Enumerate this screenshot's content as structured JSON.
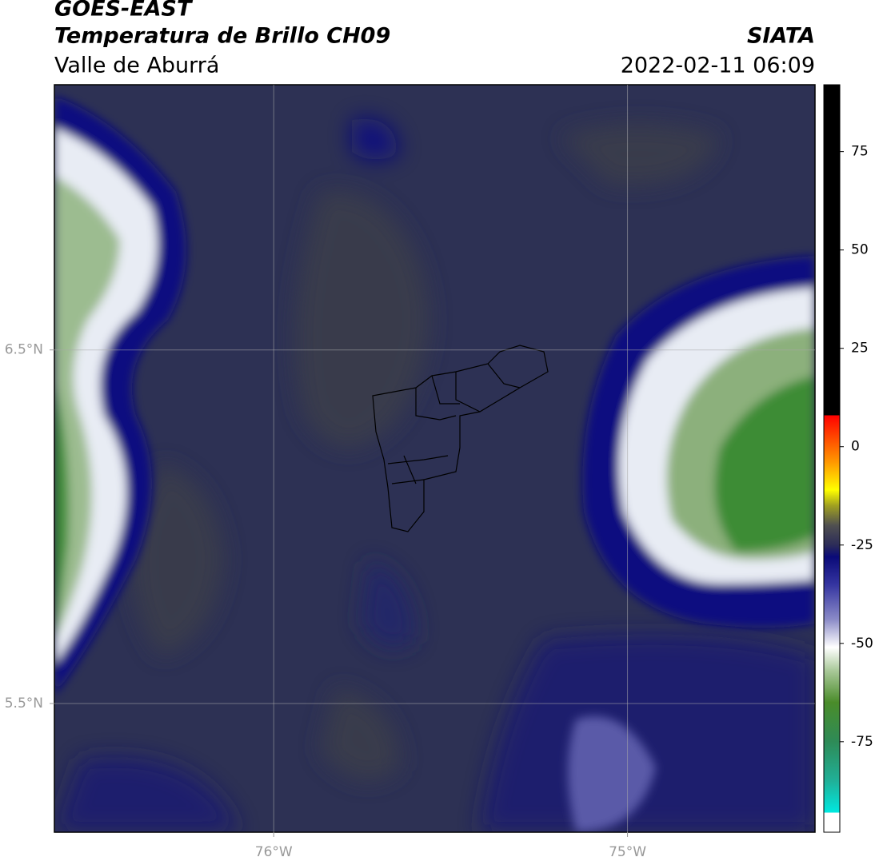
{
  "chart_data": {
    "type": "map",
    "title": "GOES-EAST",
    "subtitle": "Temperatura de Brillo CH09",
    "region": "Valle de Aburrá",
    "source": "SIATA",
    "datetime": "2022-02-11 06:09",
    "xlim": [
      -76.62,
      -74.47
    ],
    "ylim": [
      5.136,
      7.25
    ],
    "xticks": [
      {
        "value": -76,
        "label": "76°W"
      },
      {
        "value": -75,
        "label": "75°W"
      }
    ],
    "yticks": [
      {
        "value": 6.5,
        "label": "6.5°N"
      },
      {
        "value": 5.5,
        "label": "5.5°N"
      }
    ],
    "grid": true,
    "colorbar": {
      "lim": [
        -98,
        92
      ],
      "ticks": [
        75,
        50,
        25,
        0,
        -25,
        -50,
        -75
      ],
      "colors": [
        {
          "value": -98,
          "color": "#ffffff"
        },
        {
          "value": -93,
          "color": "#ffffff"
        },
        {
          "value": -93,
          "color": "#00e8e0"
        },
        {
          "value": -85,
          "color": "#20b098"
        },
        {
          "value": -75,
          "color": "#2e8b57"
        },
        {
          "value": -65,
          "color": "#4a8c2a"
        },
        {
          "value": -57,
          "color": "#a8c898"
        },
        {
          "value": -51,
          "color": "#ffffff"
        },
        {
          "value": -44,
          "color": "#8c8cc8"
        },
        {
          "value": -35,
          "color": "#3434a0"
        },
        {
          "value": -28,
          "color": "#0a0a78"
        },
        {
          "value": -25,
          "color": "#2c2c58"
        },
        {
          "value": -20,
          "color": "#505050"
        },
        {
          "value": -15,
          "color": "#a0a020"
        },
        {
          "value": -11,
          "color": "#ffff00"
        },
        {
          "value": -4,
          "color": "#ff9900"
        },
        {
          "value": 4,
          "color": "#ff3300"
        },
        {
          "value": 8,
          "color": "#ff0000"
        },
        {
          "value": 8,
          "color": "#000000"
        },
        {
          "value": 92,
          "color": "#000000"
        }
      ]
    }
  }
}
